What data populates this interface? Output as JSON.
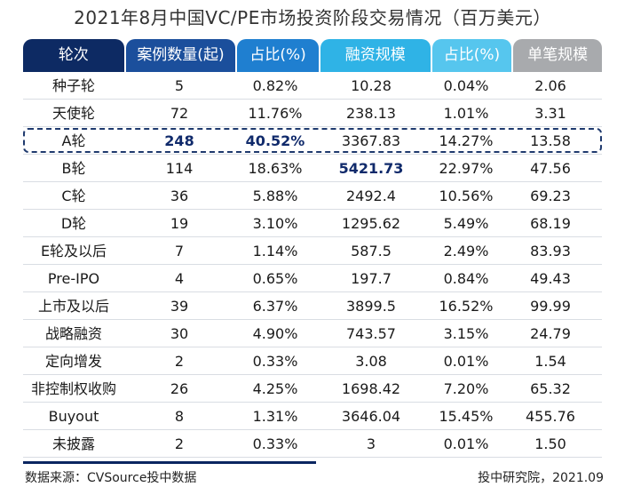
{
  "title": "2021年8月中国VC/PE市场投资阶段交易情况（百万美元）",
  "colors": {
    "h0": "#0d2a63",
    "h1": "#1b4f9c",
    "h2": "#1f7fd0",
    "h3": "#2fb3e6",
    "h4": "#56c6ee",
    "h5": "#a8aaad",
    "accent_text": "#102a6b"
  },
  "headers": [
    "轮次",
    "案例数量(起)",
    "占比(%)",
    "融资规模",
    "占比(%)",
    "单笔规模"
  ],
  "rows": [
    [
      "种子轮",
      "5",
      "0.82%",
      "10.28",
      "0.04%",
      "2.06"
    ],
    [
      "天使轮",
      "72",
      "11.76%",
      "238.13",
      "1.01%",
      "3.31"
    ],
    [
      "A轮",
      "248",
      "40.52%",
      "3367.83",
      "14.27%",
      "13.58"
    ],
    [
      "B轮",
      "114",
      "18.63%",
      "5421.73",
      "22.97%",
      "47.56"
    ],
    [
      "C轮",
      "36",
      "5.88%",
      "2492.4",
      "10.56%",
      "69.23"
    ],
    [
      "D轮",
      "19",
      "3.10%",
      "1295.62",
      "5.49%",
      "68.19"
    ],
    [
      "E轮及以后",
      "7",
      "1.14%",
      "587.5",
      "2.49%",
      "83.93"
    ],
    [
      "Pre-IPO",
      "4",
      "0.65%",
      "197.7",
      "0.84%",
      "49.43"
    ],
    [
      "上市及以后",
      "39",
      "6.37%",
      "3899.5",
      "16.52%",
      "99.99"
    ],
    [
      "战略融资",
      "30",
      "4.90%",
      "743.57",
      "3.15%",
      "24.79"
    ],
    [
      "定向增发",
      "2",
      "0.33%",
      "3.08",
      "0.01%",
      "1.54"
    ],
    [
      "非控制权收购",
      "26",
      "4.25%",
      "1698.42",
      "7.20%",
      "65.32"
    ],
    [
      "Buyout",
      "8",
      "1.31%",
      "3646.04",
      "15.45%",
      "455.76"
    ],
    [
      "未披露",
      "2",
      "0.33%",
      "3",
      "0.01%",
      "1.50"
    ]
  ],
  "highlight": {
    "row_index": 2,
    "bold_cells": [
      [
        2,
        1
      ],
      [
        2,
        2
      ],
      [
        3,
        3
      ]
    ]
  },
  "footer": {
    "source": "数据来源：CVSource投中数据",
    "credit": "投中研究院，2021.09"
  }
}
